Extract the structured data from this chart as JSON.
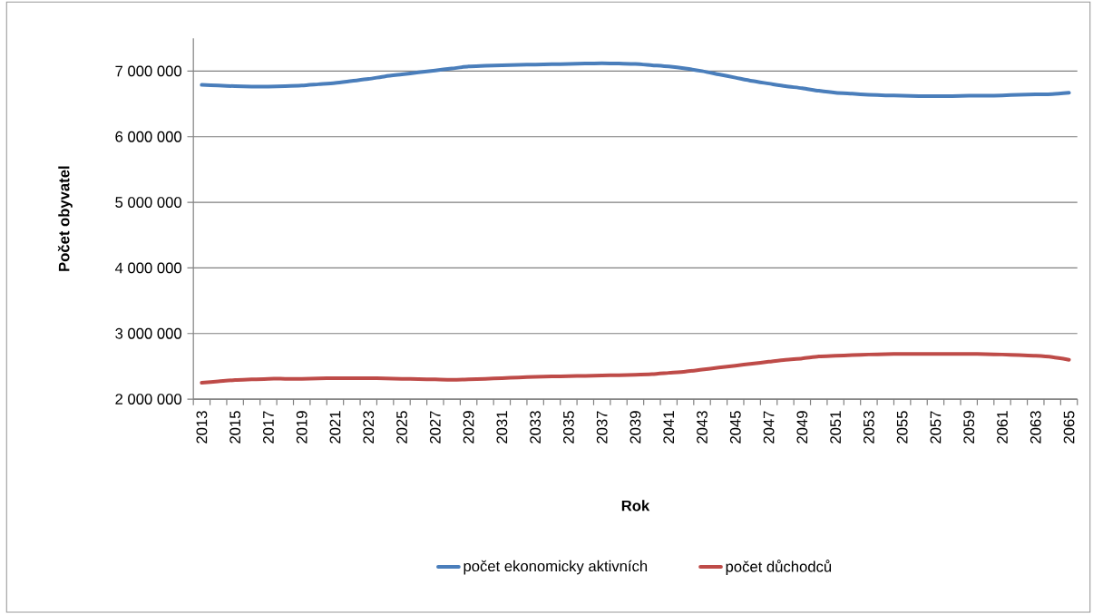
{
  "chart_data": {
    "type": "line",
    "xlabel": "Rok",
    "ylabel": "Počet obyvatel",
    "categories": [
      "2013",
      null,
      "2015",
      null,
      "2017",
      null,
      "2019",
      null,
      "2021",
      null,
      "2023",
      null,
      "2025",
      null,
      "2027",
      null,
      "2029",
      null,
      "2031",
      null,
      "2033",
      null,
      "2035",
      null,
      "2037",
      null,
      "2039",
      null,
      "2041",
      null,
      "2043",
      null,
      "2045",
      null,
      "2047",
      null,
      "2049",
      null,
      "2051",
      null,
      "2053",
      null,
      "2055",
      null,
      "2057",
      null,
      "2059",
      null,
      "2061",
      null,
      "2063",
      null,
      "2065"
    ],
    "series": [
      {
        "name": "počet ekonomicky aktivních",
        "color": "#4a7ebb",
        "values": [
          6790000,
          6780000,
          6770000,
          6765000,
          6765000,
          6770000,
          6780000,
          6800000,
          6820000,
          6850000,
          6880000,
          6920000,
          6950000,
          6980000,
          7010000,
          7040000,
          7070000,
          7080000,
          7090000,
          7095000,
          7100000,
          7105000,
          7110000,
          7115000,
          7120000,
          7115000,
          7110000,
          7090000,
          7070000,
          7040000,
          7000000,
          6950000,
          6900000,
          6850000,
          6810000,
          6770000,
          6740000,
          6700000,
          6670000,
          6655000,
          6640000,
          6630000,
          6625000,
          6620000,
          6620000,
          6620000,
          6625000,
          6625000,
          6630000,
          6640000,
          6645000,
          6650000,
          6670000
        ]
      },
      {
        "name": "počet důchodců",
        "color": "#be4b48",
        "values": [
          2250000,
          2270000,
          2290000,
          2300000,
          2310000,
          2310000,
          2310000,
          2315000,
          2320000,
          2320000,
          2320000,
          2315000,
          2310000,
          2305000,
          2300000,
          2295000,
          2300000,
          2310000,
          2320000,
          2330000,
          2340000,
          2345000,
          2350000,
          2355000,
          2360000,
          2365000,
          2370000,
          2380000,
          2400000,
          2420000,
          2450000,
          2480000,
          2510000,
          2540000,
          2570000,
          2600000,
          2620000,
          2650000,
          2660000,
          2670000,
          2680000,
          2685000,
          2690000,
          2690000,
          2690000,
          2690000,
          2690000,
          2685000,
          2680000,
          2670000,
          2660000,
          2640000,
          2600000
        ]
      }
    ],
    "ylim": [
      2000000,
      7500000
    ],
    "yticks": [
      {
        "value": 2000000,
        "label": "2 000 000"
      },
      {
        "value": 3000000,
        "label": "3 000 000"
      },
      {
        "value": 4000000,
        "label": "4 000 000"
      },
      {
        "value": 5000000,
        "label": "5 000 000"
      },
      {
        "value": 6000000,
        "label": "6 000 000"
      },
      {
        "value": 7000000,
        "label": "7 000 000"
      }
    ],
    "grid": "y",
    "legend": "bottom",
    "marker": "none",
    "line_style": "solid"
  }
}
